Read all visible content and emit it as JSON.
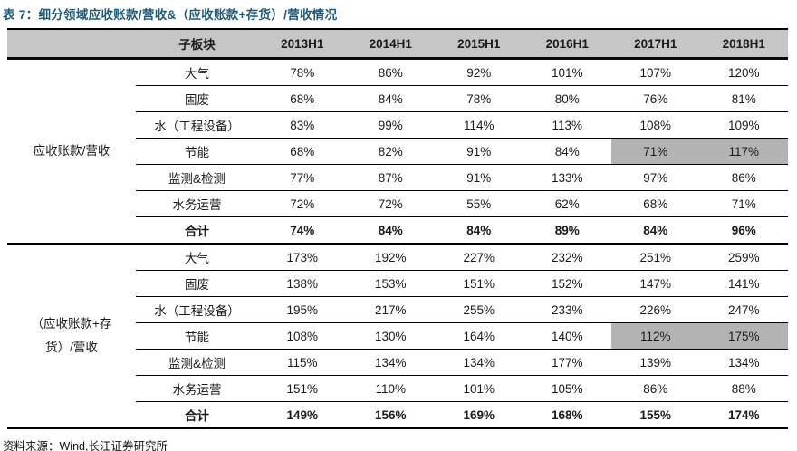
{
  "title": "表 7：细分领域应收账款/营收&（应收账款+存货）/营收情况",
  "colors": {
    "title": "#1E5A78",
    "header_bg": "#C6C6C6",
    "highlight_bg": "#B3B3B3",
    "line": "#000000"
  },
  "table": {
    "header": {
      "group_col": "",
      "sub_col": "子板块",
      "years": [
        "2013H1",
        "2014H1",
        "2015H1",
        "2016H1",
        "2017H1",
        "2018H1"
      ]
    },
    "groups": [
      {
        "label": "应收账款/营收",
        "rows": [
          {
            "name": "大气",
            "values": [
              "78%",
              "86%",
              "92%",
              "101%",
              "107%",
              "120%"
            ]
          },
          {
            "name": "固废",
            "values": [
              "68%",
              "84%",
              "78%",
              "80%",
              "76%",
              "81%"
            ]
          },
          {
            "name": "水（工程设备）",
            "values": [
              "83%",
              "99%",
              "114%",
              "113%",
              "108%",
              "109%"
            ]
          },
          {
            "name": "节能",
            "values": [
              "68%",
              "82%",
              "91%",
              "84%",
              "71%",
              "117%"
            ],
            "highlight_cols": [
              4,
              5
            ]
          },
          {
            "name": "监测&检测",
            "values": [
              "77%",
              "87%",
              "91%",
              "133%",
              "97%",
              "86%"
            ]
          },
          {
            "name": "水务运营",
            "values": [
              "72%",
              "72%",
              "55%",
              "62%",
              "68%",
              "71%"
            ]
          },
          {
            "name": "合计",
            "values": [
              "74%",
              "84%",
              "84%",
              "89%",
              "84%",
              "96%"
            ],
            "bold": true
          }
        ]
      },
      {
        "label": "（应收账款+存货）/营收",
        "rows": [
          {
            "name": "大气",
            "values": [
              "173%",
              "192%",
              "227%",
              "232%",
              "251%",
              "259%"
            ]
          },
          {
            "name": "固废",
            "values": [
              "138%",
              "153%",
              "151%",
              "152%",
              "147%",
              "141%"
            ]
          },
          {
            "name": "水（工程设备）",
            "values": [
              "195%",
              "217%",
              "255%",
              "233%",
              "226%",
              "247%"
            ]
          },
          {
            "name": "节能",
            "values": [
              "108%",
              "130%",
              "164%",
              "140%",
              "112%",
              "175%"
            ],
            "highlight_cols": [
              4,
              5
            ]
          },
          {
            "name": "监测&检测",
            "values": [
              "115%",
              "134%",
              "134%",
              "177%",
              "139%",
              "134%"
            ]
          },
          {
            "name": "水务运营",
            "values": [
              "151%",
              "110%",
              "101%",
              "105%",
              "86%",
              "88%"
            ]
          },
          {
            "name": "合计",
            "values": [
              "149%",
              "156%",
              "169%",
              "168%",
              "155%",
              "174%"
            ],
            "bold": true
          }
        ]
      }
    ]
  },
  "footer": {
    "source": "资料来源：Wind,长江证券研究所"
  }
}
